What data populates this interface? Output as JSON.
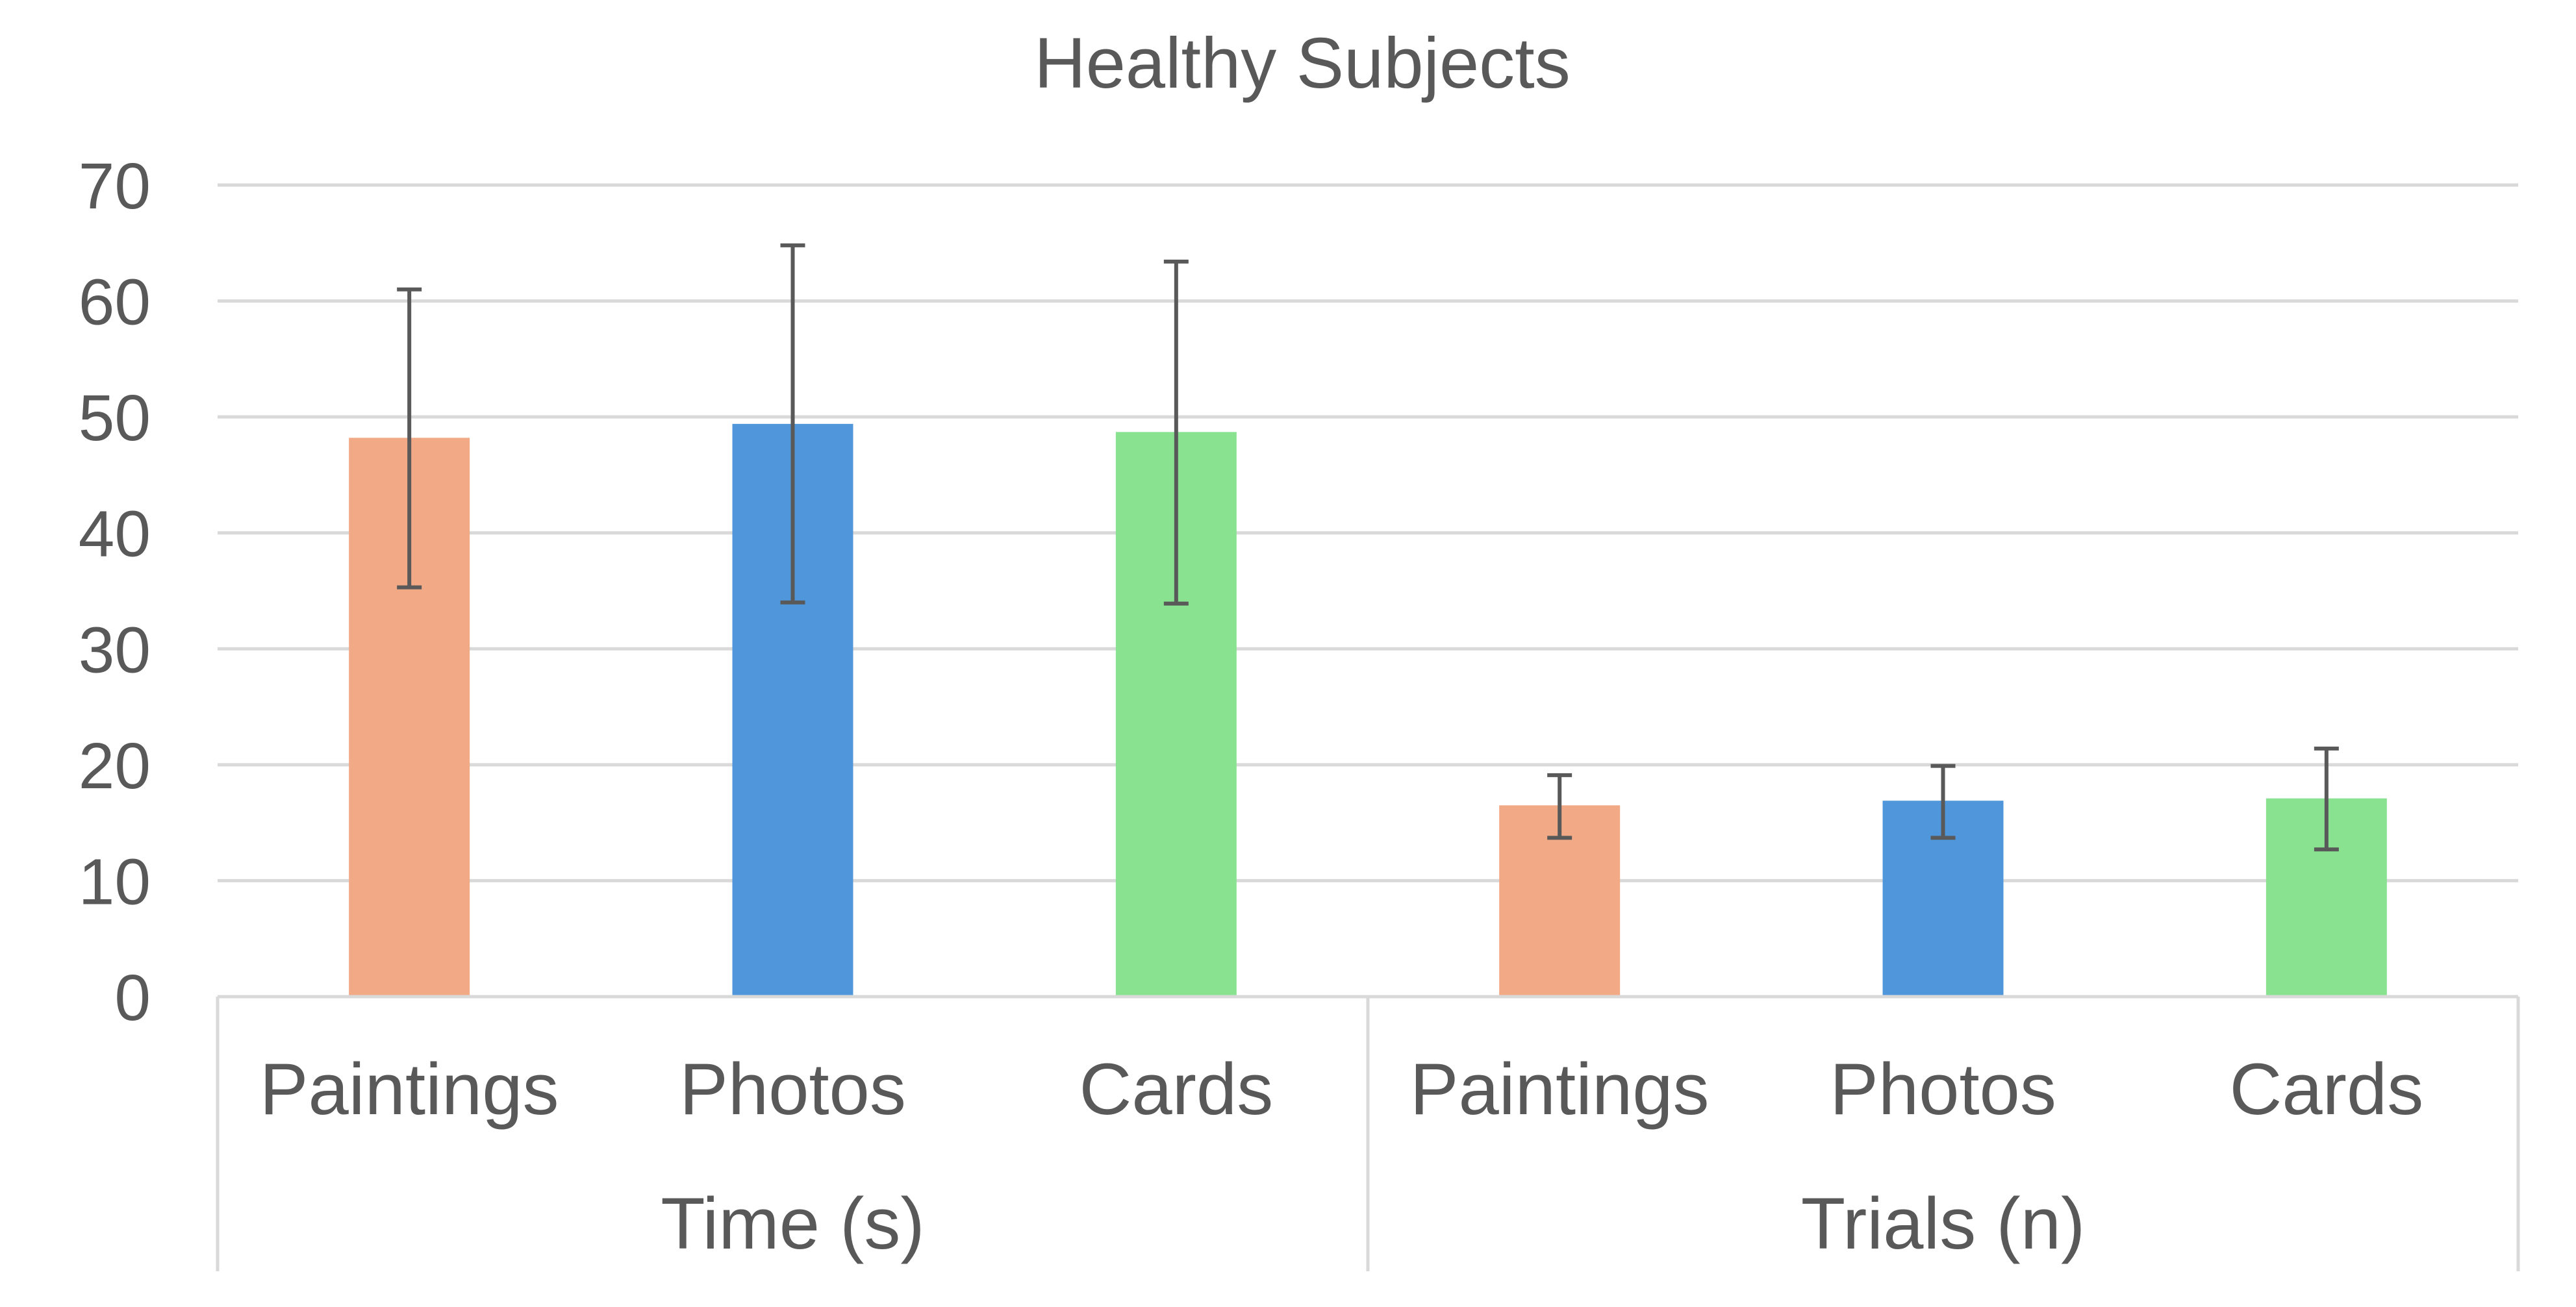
{
  "chart_data": {
    "type": "bar",
    "title": "Healthy Subjects",
    "ylim": [
      0,
      70
    ],
    "yticks": [
      0,
      10,
      20,
      30,
      40,
      50,
      60,
      70
    ],
    "grid": true,
    "groups": [
      {
        "label": "Time (s)",
        "bars": [
          {
            "category": "Paintings",
            "value": 48.2,
            "err_low": 35.3,
            "err_high": 61.0,
            "color": "#f2a985"
          },
          {
            "category": "Photos",
            "value": 49.4,
            "err_low": 34.0,
            "err_high": 64.8,
            "color": "#4f96da"
          },
          {
            "category": "Cards",
            "value": 48.7,
            "err_low": 33.9,
            "err_high": 63.4,
            "color": "#88e28f"
          }
        ]
      },
      {
        "label": "Trials (n)",
        "bars": [
          {
            "category": "Paintings",
            "value": 16.5,
            "err_low": 13.7,
            "err_high": 19.1,
            "color": "#f2a985"
          },
          {
            "category": "Photos",
            "value": 16.9,
            "err_low": 13.7,
            "err_high": 19.9,
            "color": "#4f96da"
          },
          {
            "category": "Cards",
            "value": 17.1,
            "err_low": 12.7,
            "err_high": 21.4,
            "color": "#88e28f"
          }
        ]
      }
    ]
  }
}
